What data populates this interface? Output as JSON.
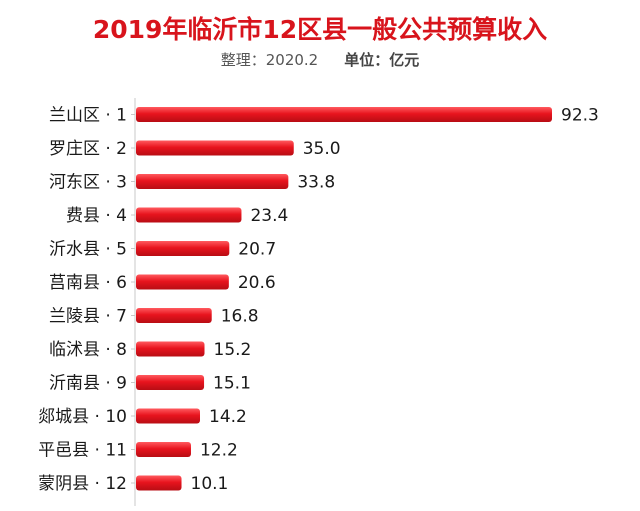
{
  "chart_data": {
    "type": "bar",
    "orientation": "horizontal",
    "title": "2019年临沂市12区县一般公共预算收入",
    "subtitle_left": "整理：2020.2",
    "subtitle_right": "单位：亿元",
    "categories": [
      "兰山区 · 1",
      "罗庄区 · 2",
      "河东区 · 3",
      "费县 · 4",
      "沂水县 · 5",
      "莒南县 · 6",
      "兰陵县 · 7",
      "临沭县 · 8",
      "沂南县 · 9",
      "郯城县 · 10",
      "平邑县 · 11",
      "蒙阴县 · 12"
    ],
    "values": [
      92.3,
      35.0,
      33.8,
      23.4,
      20.7,
      20.6,
      16.8,
      15.2,
      15.1,
      14.2,
      12.2,
      10.1
    ],
    "value_labels": [
      "92.3",
      "35.0",
      "33.8",
      "23.4",
      "20.7",
      "20.6",
      "16.8",
      "15.2",
      "15.1",
      "14.2",
      "12.2",
      "10.1"
    ],
    "xlim": [
      0,
      92.3
    ],
    "grid": false,
    "legend": "none",
    "bar_color": "#e8141e"
  }
}
